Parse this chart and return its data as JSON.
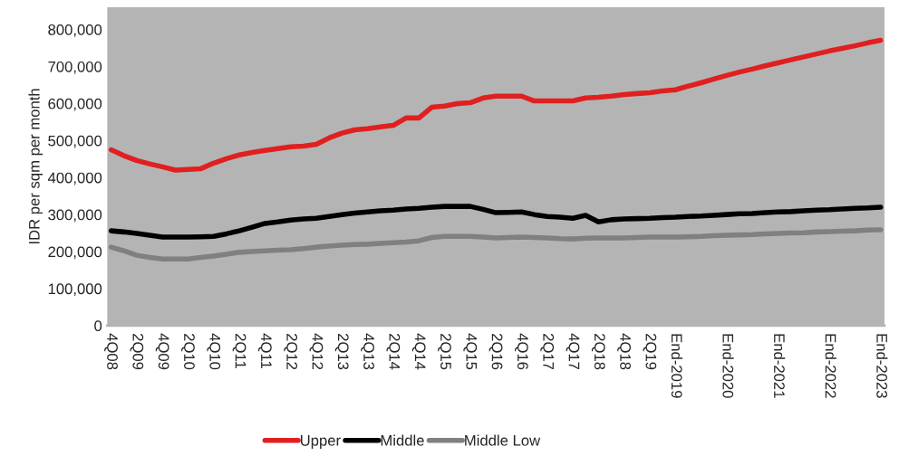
{
  "chart_data": {
    "type": "line",
    "ylabel": "IDR per sqm per month",
    "categories": [
      "4Q08",
      null,
      "2Q09",
      null,
      "4Q09",
      null,
      "2Q10",
      null,
      "4Q10",
      null,
      "2Q11",
      null,
      "4Q11",
      null,
      "2Q12",
      null,
      "4Q12",
      null,
      "2Q13",
      null,
      "4Q13",
      null,
      "2Q14",
      null,
      "4Q14",
      null,
      "2Q15",
      null,
      "4Q15",
      null,
      "2Q16",
      null,
      "4Q16",
      null,
      "2Q17",
      null,
      "4Q17",
      null,
      "2Q18",
      null,
      "4Q18",
      null,
      "2Q19",
      null,
      "End-2019",
      null,
      null,
      null,
      "End-2020",
      null,
      null,
      null,
      "End-2021",
      null,
      null,
      null,
      "End-2022",
      null,
      null,
      null,
      "End-2023"
    ],
    "series": [
      {
        "name": "Upper",
        "color": "#e02020",
        "values": [
          475000,
          459000,
          446000,
          437000,
          429000,
          420000,
          422000,
          424000,
          439000,
          451000,
          461000,
          468000,
          473000,
          478000,
          483000,
          485000,
          490000,
          507000,
          520000,
          529000,
          532000,
          537000,
          541000,
          561000,
          561000,
          590000,
          593000,
          600000,
          602000,
          615000,
          620000,
          620000,
          620000,
          607000,
          607000,
          607000,
          607000,
          615000,
          617000,
          620000,
          624000,
          627000,
          629000,
          634000,
          637000,
          647000,
          656000,
          666000,
          676000,
          685000,
          693000,
          702000,
          710000,
          718000,
          726000,
          734000,
          742000,
          749000,
          756000,
          764000,
          771000
        ]
      },
      {
        "name": "Middle",
        "color": "#000000",
        "values": [
          256000,
          253000,
          249000,
          244000,
          239000,
          239000,
          239000,
          240000,
          241000,
          248000,
          256000,
          266000,
          276000,
          280000,
          285000,
          288000,
          290000,
          295000,
          300000,
          304000,
          307000,
          310000,
          312000,
          315000,
          317000,
          320000,
          322000,
          322000,
          322000,
          314000,
          305000,
          306000,
          307000,
          300000,
          295000,
          293000,
          290000,
          298000,
          280000,
          286000,
          288000,
          289000,
          290000,
          292000,
          293000,
          295000,
          296000,
          298000,
          300000,
          302000,
          303000,
          305000,
          307000,
          308000,
          310000,
          312000,
          313000,
          315000,
          317000,
          318000,
          320000
        ]
      },
      {
        "name": "Middle Low",
        "color": "#808080",
        "values": [
          212000,
          202000,
          190000,
          184000,
          180000,
          180000,
          180000,
          184000,
          188000,
          193000,
          198000,
          200000,
          202000,
          204000,
          205000,
          208000,
          212000,
          215000,
          217000,
          219000,
          220000,
          222000,
          224000,
          226000,
          229000,
          238000,
          241000,
          241000,
          241000,
          239000,
          237000,
          238000,
          239000,
          238000,
          237000,
          235000,
          234000,
          236000,
          237000,
          237000,
          237000,
          238000,
          239000,
          239000,
          239000,
          240000,
          241000,
          243000,
          244000,
          245000,
          246000,
          248000,
          249000,
          250000,
          251000,
          253000,
          254000,
          255000,
          256000,
          258000,
          259000
        ]
      }
    ],
    "ylim": [
      0,
      860000
    ],
    "yticks": [
      0,
      {
        "value": 100000,
        "label": "100,000"
      },
      {
        "value": 200000,
        "label": "200,000"
      },
      {
        "value": 300000,
        "label": "300,000"
      },
      {
        "value": 400000,
        "label": "400,000"
      },
      {
        "value": 500000,
        "label": "500,000"
      },
      {
        "value": 600000,
        "label": "600,000"
      },
      {
        "value": 700000,
        "label": "700,000"
      },
      {
        "value": 800000,
        "label": "800,000"
      }
    ],
    "grid": false,
    "legend": "bottom",
    "marker": "none",
    "line_style": "solid"
  }
}
